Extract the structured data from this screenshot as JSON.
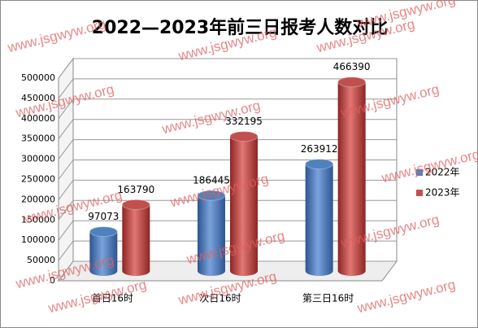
{
  "chart_data": {
    "type": "bar3d",
    "title": "2022—2023年前三日报考人数对比",
    "categories": [
      "首日16时",
      "次日16时",
      "第三日16时"
    ],
    "series": [
      {
        "name": "2022年",
        "color": "#4f81bd",
        "values": [
          97073,
          186445,
          263912
        ]
      },
      {
        "name": "2023年",
        "color": "#c0504d",
        "values": [
          163790,
          332195,
          466390
        ]
      }
    ],
    "ylim": [
      0,
      500000
    ],
    "yticks": [
      0,
      50000,
      100000,
      150000,
      200000,
      250000,
      300000,
      350000,
      400000,
      450000,
      500000
    ],
    "grid": true,
    "legend": "right",
    "watermark": "www.jsgwyw.org"
  }
}
